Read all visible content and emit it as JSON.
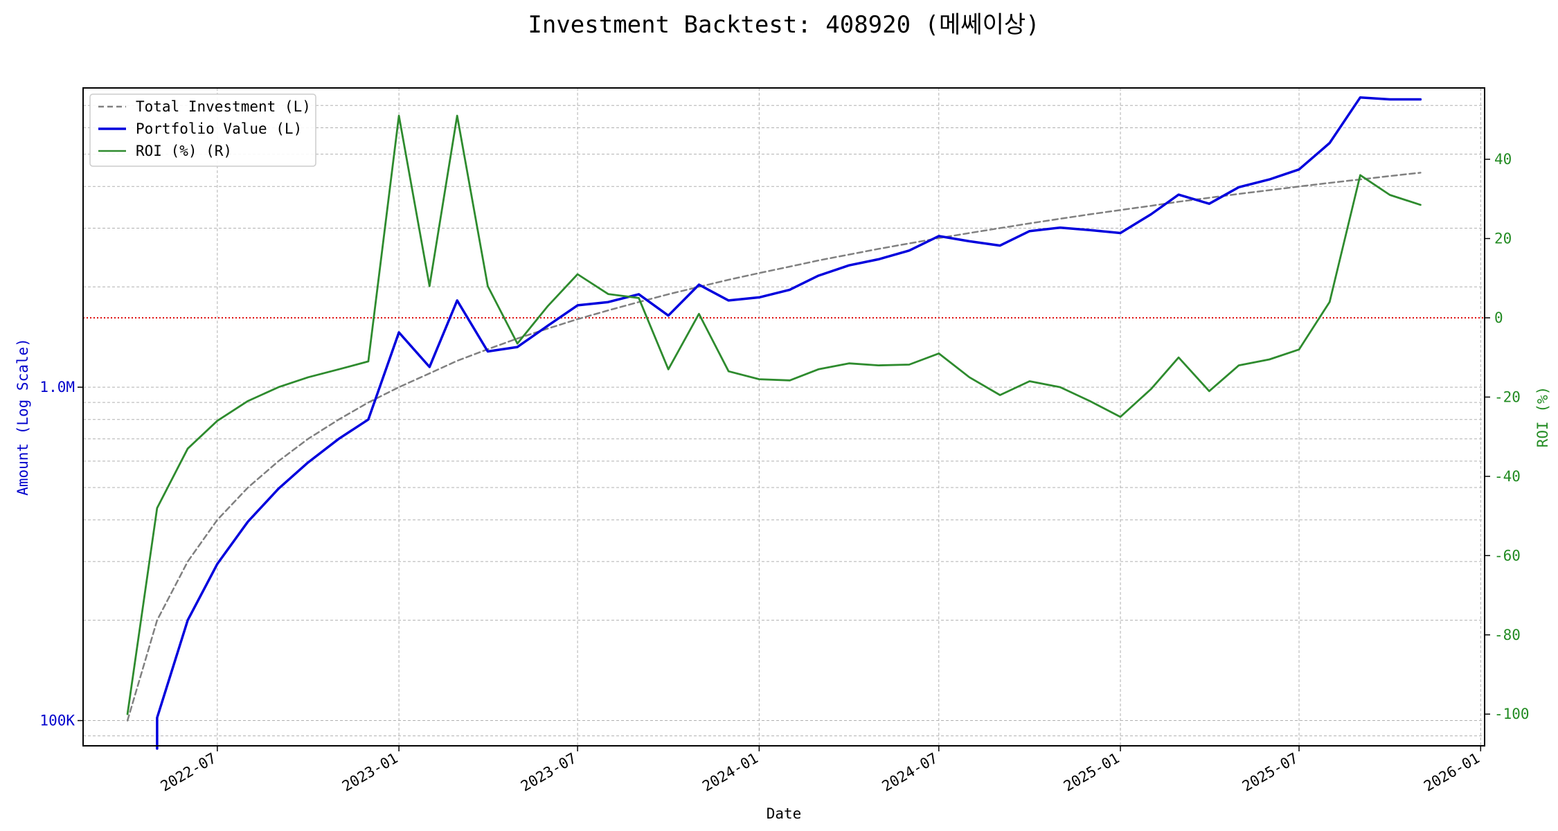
{
  "chart_data": {
    "type": "line",
    "title": "Investment Backtest: 408920 (메쎄이상)",
    "xlabel": "Date",
    "ylabel_left": "Amount (Log Scale)",
    "ylabel_right": "ROI (%)",
    "left_scale": "log",
    "left_ylim": [
      84000,
      7900000
    ],
    "right_ylim": [
      -108,
      58
    ],
    "x_range": [
      "2022-02-15",
      "2026-01-05"
    ],
    "x_tick_labels": [
      "2022-07",
      "2023-01",
      "2023-07",
      "2024-01",
      "2024-07",
      "2025-01",
      "2025-07",
      "2026-01"
    ],
    "left_tick_labels": [
      {
        "value": 100000,
        "label": "100K"
      },
      {
        "value": 1000000,
        "label": "1.0M"
      }
    ],
    "right_ticks": [
      40,
      20,
      0,
      -20,
      -40,
      -60,
      -80,
      -100
    ],
    "grid": true,
    "zero_line": {
      "axis": "right",
      "value": 0,
      "color": "#dd0000",
      "style": "dotted"
    },
    "legend_position": "top-left",
    "colors": {
      "total_investment": "#808080",
      "portfolio": "#0000dd",
      "roi": "#2e8b2e",
      "left_axis": "#0000cc",
      "right_axis": "#228b22"
    },
    "dates": [
      "2022-04-01",
      "2022-05-01",
      "2022-06-01",
      "2022-07-01",
      "2022-08-01",
      "2022-09-01",
      "2022-10-01",
      "2022-11-01",
      "2022-12-01",
      "2023-01-01",
      "2023-02-01",
      "2023-03-01",
      "2023-04-01",
      "2023-05-01",
      "2023-06-01",
      "2023-07-01",
      "2023-08-01",
      "2023-09-01",
      "2023-10-01",
      "2023-11-01",
      "2023-12-01",
      "2024-01-01",
      "2024-02-01",
      "2024-03-01",
      "2024-04-01",
      "2024-05-01",
      "2024-06-01",
      "2024-07-01",
      "2024-08-01",
      "2024-09-01",
      "2024-10-01",
      "2024-11-01",
      "2024-12-01",
      "2025-01-01",
      "2025-02-01",
      "2025-03-01",
      "2025-04-01",
      "2025-05-01",
      "2025-06-01",
      "2025-07-01",
      "2025-08-01",
      "2025-09-01",
      "2025-10-01",
      "2025-11-01"
    ],
    "series": [
      {
        "name": "Total Investment (L)",
        "axis": "left",
        "style": "dashed",
        "values": [
          100000,
          200000,
          300000,
          400000,
          500000,
          600000,
          700000,
          800000,
          900000,
          1000000,
          1100000,
          1200000,
          1300000,
          1400000,
          1500000,
          1600000,
          1700000,
          1800000,
          1900000,
          2000000,
          2100000,
          2200000,
          2300000,
          2400000,
          2500000,
          2600000,
          2700000,
          2800000,
          2900000,
          3000000,
          3100000,
          3200000,
          3300000,
          3400000,
          3500000,
          3600000,
          3700000,
          3800000,
          3900000,
          4000000,
          4100000,
          4200000,
          4300000,
          4400000
        ]
      },
      {
        "name": "Portfolio Value (L)",
        "axis": "left",
        "style": "solid",
        "values": [
          null,
          102000,
          200000,
          295000,
          395000,
          496000,
          595000,
          700000,
          800000,
          1460000,
          1150000,
          1820000,
          1280000,
          1320000,
          1530000,
          1760000,
          1800000,
          1900000,
          1640000,
          2030000,
          1820000,
          1860000,
          1960000,
          2160000,
          2320000,
          2420000,
          2570000,
          2840000,
          2740000,
          2660000,
          2940000,
          3010000,
          2960000,
          2900000,
          3300000,
          3780000,
          3550000,
          3980000,
          4200000,
          4500000,
          5400000,
          7400000,
          7300000,
          7300000
        ]
      },
      {
        "name": "ROI (%) (R)",
        "axis": "right",
        "style": "solid",
        "values": [
          -100,
          -48,
          -33,
          -26,
          -21,
          -17.5,
          -15,
          -13,
          -11,
          51,
          8,
          51,
          8,
          -6.5,
          3,
          11,
          6,
          5,
          -13,
          1,
          -13.5,
          -15.5,
          -15.8,
          -13,
          -11.5,
          -12,
          -11.8,
          -9,
          -15,
          -19.5,
          -16,
          -17.5,
          -21,
          -25,
          -18,
          -10,
          -18.5,
          -12,
          -10.5,
          -8,
          4,
          36,
          31,
          28.5
        ]
      }
    ]
  }
}
